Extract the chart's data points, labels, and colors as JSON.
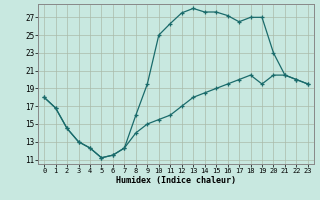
{
  "background_color": "#c8e8e0",
  "line_color": "#1a6b6b",
  "xlabel": "Humidex (Indice chaleur)",
  "curve1_x": [
    0,
    1,
    2,
    3,
    4,
    5,
    6,
    7,
    8,
    9,
    10,
    11,
    12,
    13,
    14,
    15,
    16,
    17,
    18,
    19,
    20,
    21,
    22,
    23
  ],
  "curve1_y": [
    18.0,
    16.8,
    14.5,
    13.0,
    12.3,
    11.2,
    11.5,
    12.3,
    16.0,
    19.5,
    25.0,
    26.3,
    27.5,
    28.0,
    27.6,
    27.6,
    27.2,
    26.5,
    27.0,
    27.0,
    23.0,
    20.5,
    20.0,
    19.5
  ],
  "curve2_x": [
    0,
    1,
    2,
    3,
    4,
    5,
    6,
    7,
    8,
    9,
    10,
    11,
    12,
    13,
    14,
    15,
    16,
    17,
    18,
    19,
    20,
    21,
    22,
    23
  ],
  "curve2_y": [
    18.0,
    16.8,
    14.5,
    13.0,
    12.3,
    11.2,
    11.5,
    12.3,
    14.0,
    15.0,
    15.5,
    16.0,
    17.0,
    18.0,
    18.5,
    19.0,
    19.5,
    20.0,
    20.5,
    19.5,
    20.5,
    20.5,
    20.0,
    19.5
  ],
  "ylim": [
    10.5,
    28.5
  ],
  "xlim": [
    -0.5,
    23.5
  ],
  "yticks": [
    11,
    13,
    15,
    17,
    19,
    21,
    23,
    25,
    27
  ],
  "xticks": [
    0,
    1,
    2,
    3,
    4,
    5,
    6,
    7,
    8,
    9,
    10,
    11,
    12,
    13,
    14,
    15,
    16,
    17,
    18,
    19,
    20,
    21,
    22,
    23
  ],
  "grid_color": "#aabbaa",
  "spine_color": "#888888"
}
